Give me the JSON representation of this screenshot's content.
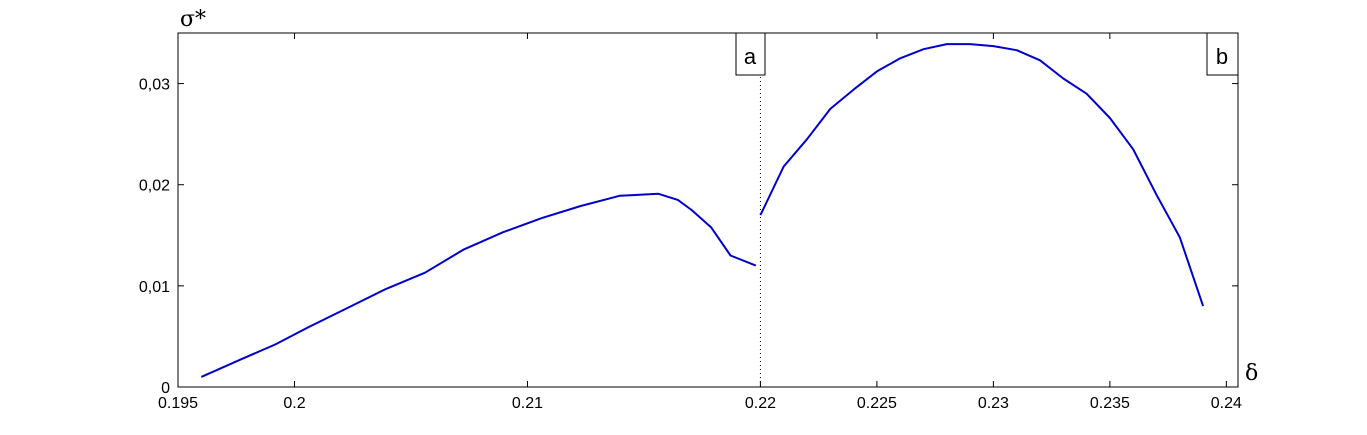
{
  "chart_data": {
    "type": "line",
    "xlabel": "δ",
    "ylabel": "σ*",
    "xlim": [
      0.195,
      0.2405
    ],
    "ylim": [
      0,
      0.035
    ],
    "x_ticks": [
      {
        "value": 0.195,
        "label": "0.195"
      },
      {
        "value": 0.2,
        "label": "0.2"
      },
      {
        "value": 0.21,
        "label": "0.21"
      },
      {
        "value": 0.22,
        "label": "0.22"
      },
      {
        "value": 0.225,
        "label": "0.225"
      },
      {
        "value": 0.23,
        "label": "0.23"
      },
      {
        "value": 0.235,
        "label": "0.235"
      },
      {
        "value": 0.24,
        "label": "0.24"
      }
    ],
    "y_ticks": [
      {
        "value": 0,
        "label": "0"
      },
      {
        "value": 0.01,
        "label": "0,01"
      },
      {
        "value": 0.02,
        "label": "0,02"
      },
      {
        "value": 0.03,
        "label": "0,03"
      }
    ],
    "grid": false,
    "line_color": "#0000cc",
    "divider": {
      "x": 0.22,
      "style": "dotted"
    },
    "panels": [
      {
        "label": "a",
        "position": "top-right of left region"
      },
      {
        "label": "b",
        "position": "top-right"
      }
    ],
    "series": [
      {
        "x": [
          0.196,
          0.198,
          0.1998,
          0.2015,
          0.2035,
          0.2055,
          0.2075,
          0.2095,
          0.2115,
          0.2135,
          0.2155,
          0.2175,
          0.2195,
          0.2205,
          0.2212,
          0.2222,
          0.2232,
          0.2245
        ],
        "y": [
          0.001,
          0.0027,
          0.0042,
          0.0059,
          0.0078,
          0.0097,
          0.0113,
          0.0136,
          0.0153,
          0.0167,
          0.0179,
          0.0189,
          0.0191,
          0.0185,
          0.0175,
          0.0158,
          0.013,
          0.012
        ]
      },
      {
        "x": [
          0.22,
          0.221,
          0.222,
          0.223,
          0.224,
          0.225,
          0.226,
          0.227,
          0.228,
          0.229,
          0.23,
          0.231,
          0.232,
          0.233,
          0.234,
          0.235,
          0.236,
          0.237,
          0.238,
          0.239
        ],
        "y": [
          0.017,
          0.0218,
          0.0245,
          0.0275,
          0.0294,
          0.0312,
          0.0325,
          0.0334,
          0.0339,
          0.0339,
          0.0337,
          0.0333,
          0.0323,
          0.0305,
          0.029,
          0.0266,
          0.0235,
          0.019,
          0.0148,
          0.008
        ]
      }
    ]
  }
}
